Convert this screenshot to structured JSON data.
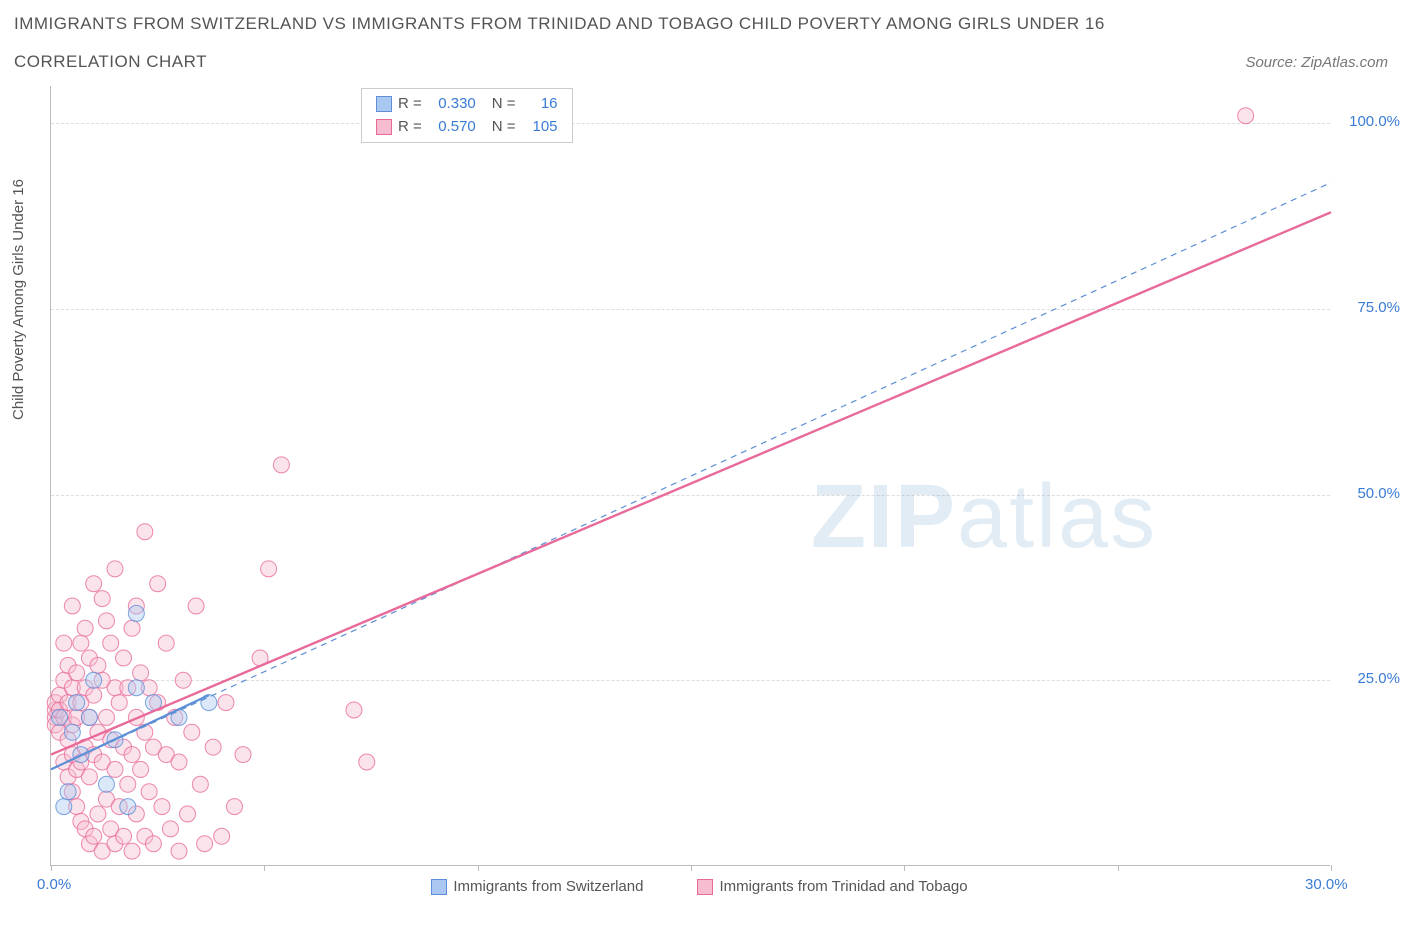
{
  "title": "IMMIGRANTS FROM SWITZERLAND VS IMMIGRANTS FROM TRINIDAD AND TOBAGO CHILD POVERTY AMONG GIRLS UNDER 16",
  "subtitle": "CORRELATION CHART",
  "source": "Source: ZipAtlas.com",
  "watermark": {
    "bold": "ZIP",
    "rest": "atlas"
  },
  "y_axis_label": "Child Poverty Among Girls Under 16",
  "chart": {
    "type": "scatter-with-trend",
    "xlim": [
      0,
      30
    ],
    "ylim": [
      0,
      105
    ],
    "x_ticks": [
      0,
      5,
      10,
      15,
      20,
      25,
      30
    ],
    "x_tick_labels": [
      "0.0%",
      "",
      "",
      "",
      "",
      "",
      "30.0%"
    ],
    "y_ticks": [
      25,
      50,
      75,
      100
    ],
    "y_tick_labels": [
      "25.0%",
      "50.0%",
      "75.0%",
      "100.0%"
    ],
    "grid_y": [
      25,
      50,
      75,
      100
    ],
    "background_color": "#ffffff",
    "grid_color": "#dddddd",
    "axis_color": "#bbbbbb",
    "tick_label_color": "#3a7bd5",
    "label_fontsize": 15,
    "marker_radius": 8,
    "marker_opacity": 0.42,
    "series": [
      {
        "name": "Immigrants from Switzerland",
        "color_fill": "#a9c7f0",
        "color_stroke": "#5d8fd6",
        "r": "0.330",
        "n": "16",
        "trend": {
          "x1": 0,
          "y1": 13,
          "x2": 30,
          "y2": 92,
          "dash": "6 5",
          "width": 1.2
        },
        "trend_solid": {
          "x1": 0,
          "y1": 13,
          "x2": 3.7,
          "y2": 23,
          "width": 2.2
        },
        "points": [
          [
            0.2,
            20
          ],
          [
            0.3,
            8
          ],
          [
            0.4,
            10
          ],
          [
            0.5,
            18
          ],
          [
            0.6,
            22
          ],
          [
            0.7,
            15
          ],
          [
            0.9,
            20
          ],
          [
            1.0,
            25
          ],
          [
            1.3,
            11
          ],
          [
            1.5,
            17
          ],
          [
            1.8,
            8
          ],
          [
            2.0,
            24
          ],
          [
            2.0,
            34
          ],
          [
            2.4,
            22
          ],
          [
            3.0,
            20
          ],
          [
            3.7,
            22
          ]
        ]
      },
      {
        "name": "Immigrants from Trinidad and Tobago",
        "color_fill": "#f6bcd0",
        "color_stroke": "#e86a9a",
        "r": "0.570",
        "n": "105",
        "trend": {
          "x1": 0,
          "y1": 15,
          "x2": 30,
          "y2": 88,
          "dash": "none",
          "width": 2.4
        },
        "points": [
          [
            0.1,
            20
          ],
          [
            0.1,
            21
          ],
          [
            0.1,
            22
          ],
          [
            0.1,
            19
          ],
          [
            0.2,
            18
          ],
          [
            0.2,
            23
          ],
          [
            0.2,
            21
          ],
          [
            0.3,
            14
          ],
          [
            0.3,
            20
          ],
          [
            0.3,
            25
          ],
          [
            0.3,
            30
          ],
          [
            0.4,
            12
          ],
          [
            0.4,
            17
          ],
          [
            0.4,
            22
          ],
          [
            0.4,
            27
          ],
          [
            0.5,
            10
          ],
          [
            0.5,
            15
          ],
          [
            0.5,
            19
          ],
          [
            0.5,
            24
          ],
          [
            0.5,
            35
          ],
          [
            0.6,
            8
          ],
          [
            0.6,
            13
          ],
          [
            0.6,
            20
          ],
          [
            0.6,
            26
          ],
          [
            0.7,
            6
          ],
          [
            0.7,
            14
          ],
          [
            0.7,
            22
          ],
          [
            0.7,
            30
          ],
          [
            0.8,
            5
          ],
          [
            0.8,
            16
          ],
          [
            0.8,
            24
          ],
          [
            0.8,
            32
          ],
          [
            0.9,
            3
          ],
          [
            0.9,
            12
          ],
          [
            0.9,
            20
          ],
          [
            0.9,
            28
          ],
          [
            1.0,
            4
          ],
          [
            1.0,
            15
          ],
          [
            1.0,
            23
          ],
          [
            1.0,
            38
          ],
          [
            1.1,
            7
          ],
          [
            1.1,
            18
          ],
          [
            1.1,
            27
          ],
          [
            1.2,
            2
          ],
          [
            1.2,
            14
          ],
          [
            1.2,
            25
          ],
          [
            1.2,
            36
          ],
          [
            1.3,
            9
          ],
          [
            1.3,
            20
          ],
          [
            1.3,
            33
          ],
          [
            1.4,
            5
          ],
          [
            1.4,
            17
          ],
          [
            1.4,
            30
          ],
          [
            1.5,
            3
          ],
          [
            1.5,
            13
          ],
          [
            1.5,
            24
          ],
          [
            1.5,
            40
          ],
          [
            1.6,
            8
          ],
          [
            1.6,
            22
          ],
          [
            1.7,
            4
          ],
          [
            1.7,
            16
          ],
          [
            1.7,
            28
          ],
          [
            1.8,
            11
          ],
          [
            1.8,
            24
          ],
          [
            1.9,
            2
          ],
          [
            1.9,
            15
          ],
          [
            1.9,
            32
          ],
          [
            2.0,
            7
          ],
          [
            2.0,
            20
          ],
          [
            2.0,
            35
          ],
          [
            2.1,
            13
          ],
          [
            2.1,
            26
          ],
          [
            2.2,
            4
          ],
          [
            2.2,
            18
          ],
          [
            2.2,
            45
          ],
          [
            2.3,
            10
          ],
          [
            2.3,
            24
          ],
          [
            2.4,
            3
          ],
          [
            2.4,
            16
          ],
          [
            2.5,
            22
          ],
          [
            2.5,
            38
          ],
          [
            2.6,
            8
          ],
          [
            2.7,
            15
          ],
          [
            2.7,
            30
          ],
          [
            2.8,
            5
          ],
          [
            2.9,
            20
          ],
          [
            3.0,
            2
          ],
          [
            3.0,
            14
          ],
          [
            3.1,
            25
          ],
          [
            3.2,
            7
          ],
          [
            3.3,
            18
          ],
          [
            3.4,
            35
          ],
          [
            3.5,
            11
          ],
          [
            3.6,
            3
          ],
          [
            3.8,
            16
          ],
          [
            4.0,
            4
          ],
          [
            4.1,
            22
          ],
          [
            4.3,
            8
          ],
          [
            4.5,
            15
          ],
          [
            4.9,
            28
          ],
          [
            5.1,
            40
          ],
          [
            5.4,
            54
          ],
          [
            7.4,
            14
          ],
          [
            7.1,
            21
          ],
          [
            28.0,
            101
          ]
        ]
      }
    ],
    "legend_bottom": [
      {
        "label": "Immigrants from Switzerland",
        "fill": "#a9c7f0",
        "stroke": "#5d8fd6"
      },
      {
        "label": "Immigrants from Trinidad and Tobago",
        "fill": "#f6bcd0",
        "stroke": "#e86a9a"
      }
    ]
  }
}
